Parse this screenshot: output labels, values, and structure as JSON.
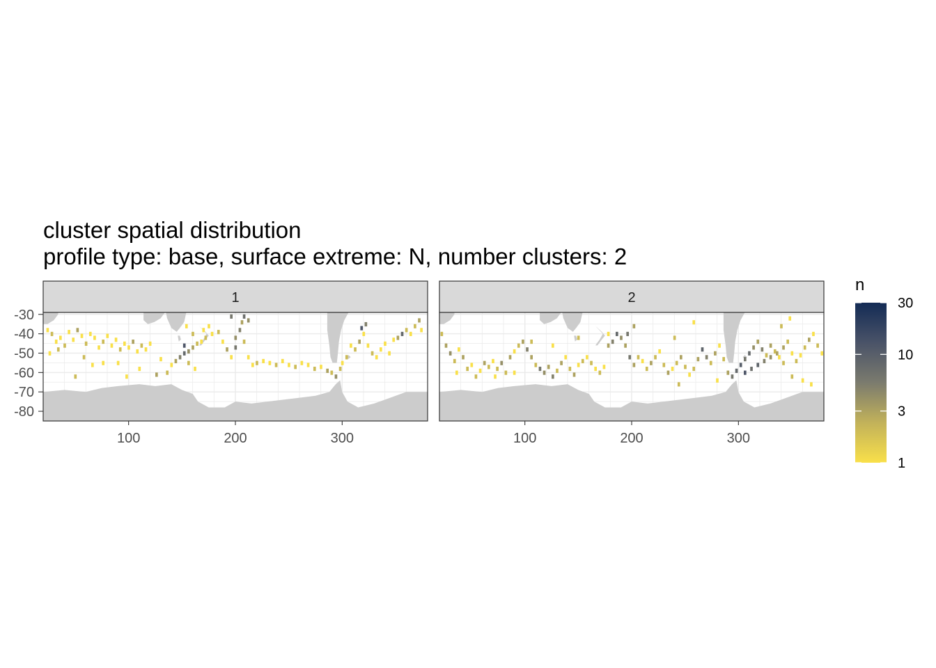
{
  "title": "cluster spatial distribution",
  "subtitle": "profile type: base, surface extreme: N, number clusters: 2",
  "chart_data": {
    "type": "heatmap",
    "title": "cluster spatial distribution",
    "subtitle": "profile type: base, surface extreme: N, number clusters: 2",
    "xlabel": "",
    "ylabel": "",
    "xlim": [
      20,
      380
    ],
    "ylim": [
      -85,
      -29
    ],
    "x_ticks": [
      100,
      200,
      300
    ],
    "x_tick_labels": [
      "100",
      "200",
      "300"
    ],
    "y_ticks": [
      -30,
      -40,
      -50,
      -60,
      -70,
      -80
    ],
    "y_tick_labels": [
      "-30",
      "-40",
      "-50",
      "-60",
      "-70",
      "-80"
    ],
    "grid": true,
    "land_color": "#cccccc",
    "facets": [
      {
        "label": "1",
        "cells": [
          [
            24,
            -38,
            1
          ],
          [
            28,
            -40,
            2
          ],
          [
            32,
            -44,
            1
          ],
          [
            36,
            -42,
            1
          ],
          [
            40,
            -46,
            2
          ],
          [
            44,
            -39,
            1
          ],
          [
            48,
            -43,
            1
          ],
          [
            52,
            -38,
            3
          ],
          [
            56,
            -41,
            1
          ],
          [
            60,
            -45,
            2
          ],
          [
            64,
            -40,
            1
          ],
          [
            68,
            -42,
            1
          ],
          [
            72,
            -47,
            1
          ],
          [
            76,
            -44,
            2
          ],
          [
            80,
            -41,
            1
          ],
          [
            84,
            -46,
            1
          ],
          [
            88,
            -43,
            1
          ],
          [
            92,
            -48,
            2
          ],
          [
            96,
            -45,
            1
          ],
          [
            100,
            -47,
            1
          ],
          [
            104,
            -44,
            3
          ],
          [
            108,
            -49,
            1
          ],
          [
            112,
            -46,
            2
          ],
          [
            116,
            -48,
            1
          ],
          [
            120,
            -45,
            1
          ],
          [
            26,
            -50,
            1
          ],
          [
            34,
            -48,
            2
          ],
          [
            50,
            -62,
            2
          ],
          [
            66,
            -56,
            1
          ],
          [
            90,
            -55,
            1
          ],
          [
            110,
            -58,
            1
          ],
          [
            136,
            -60,
            2
          ],
          [
            140,
            -56,
            1
          ],
          [
            144,
            -54,
            3
          ],
          [
            148,
            -52,
            5
          ],
          [
            152,
            -50,
            8
          ],
          [
            156,
            -49,
            4
          ],
          [
            160,
            -47,
            3
          ],
          [
            164,
            -45,
            2
          ],
          [
            168,
            -44,
            1
          ],
          [
            152,
            -46,
            12
          ],
          [
            156,
            -55,
            2
          ],
          [
            162,
            -58,
            1
          ],
          [
            170,
            -38,
            1
          ],
          [
            172,
            -42,
            2
          ],
          [
            175,
            -36,
            1
          ],
          [
            178,
            -40,
            1
          ],
          [
            184,
            -39,
            2
          ],
          [
            188,
            -44,
            1
          ],
          [
            192,
            -48,
            3
          ],
          [
            196,
            -52,
            1
          ],
          [
            200,
            -47,
            6
          ],
          [
            200,
            -42,
            4
          ],
          [
            204,
            -38,
            5
          ],
          [
            206,
            -34,
            3
          ],
          [
            208,
            -44,
            2
          ],
          [
            212,
            -52,
            1
          ],
          [
            216,
            -56,
            1
          ],
          [
            220,
            -55,
            2
          ],
          [
            226,
            -54,
            1
          ],
          [
            232,
            -55,
            1
          ],
          [
            238,
            -56,
            2
          ],
          [
            244,
            -54,
            1
          ],
          [
            250,
            -56,
            1
          ],
          [
            256,
            -57,
            2
          ],
          [
            262,
            -55,
            1
          ],
          [
            268,
            -56,
            1
          ],
          [
            274,
            -58,
            2
          ],
          [
            280,
            -57,
            1
          ],
          [
            286,
            -59,
            3
          ],
          [
            290,
            -60,
            2
          ],
          [
            294,
            -62,
            4
          ],
          [
            298,
            -58,
            2
          ],
          [
            300,
            -55,
            1
          ],
          [
            304,
            -52,
            2
          ],
          [
            308,
            -46,
            1
          ],
          [
            312,
            -48,
            2
          ],
          [
            316,
            -44,
            3
          ],
          [
            320,
            -40,
            1
          ],
          [
            324,
            -46,
            1
          ],
          [
            328,
            -50,
            2
          ],
          [
            332,
            -52,
            1
          ],
          [
            336,
            -48,
            1
          ],
          [
            340,
            -45,
            1
          ],
          [
            344,
            -50,
            1
          ],
          [
            348,
            -43,
            1
          ],
          [
            352,
            -42,
            3
          ],
          [
            356,
            -40,
            8
          ],
          [
            360,
            -38,
            2
          ],
          [
            364,
            -40,
            1
          ],
          [
            368,
            -36,
            2
          ],
          [
            372,
            -33,
            3
          ],
          [
            374,
            -38,
            1
          ],
          [
            318,
            -37,
            12
          ],
          [
            322,
            -35,
            5
          ],
          [
            196,
            -31,
            6
          ],
          [
            208,
            -31,
            7
          ],
          [
            212,
            -33,
            4
          ],
          [
            154,
            -36,
            1
          ],
          [
            160,
            -40,
            2
          ],
          [
            130,
            -53,
            1
          ],
          [
            126,
            -61,
            3
          ],
          [
            98,
            -62,
            1
          ],
          [
            76,
            -55,
            1
          ],
          [
            58,
            -52,
            2
          ]
        ]
      },
      {
        "label": "2",
        "cells": [
          [
            22,
            -40,
            2
          ],
          [
            26,
            -46,
            3
          ],
          [
            30,
            -50,
            4
          ],
          [
            34,
            -54,
            2
          ],
          [
            38,
            -48,
            1
          ],
          [
            42,
            -52,
            3
          ],
          [
            46,
            -58,
            2
          ],
          [
            50,
            -56,
            1
          ],
          [
            54,
            -62,
            2
          ],
          [
            58,
            -59,
            1
          ],
          [
            62,
            -55,
            3
          ],
          [
            66,
            -57,
            2
          ],
          [
            70,
            -54,
            1
          ],
          [
            74,
            -58,
            2
          ],
          [
            78,
            -55,
            4
          ],
          [
            82,
            -60,
            2
          ],
          [
            86,
            -52,
            3
          ],
          [
            90,
            -49,
            1
          ],
          [
            94,
            -46,
            2
          ],
          [
            98,
            -44,
            3
          ],
          [
            102,
            -48,
            5
          ],
          [
            106,
            -52,
            3
          ],
          [
            110,
            -56,
            2
          ],
          [
            114,
            -58,
            6
          ],
          [
            118,
            -60,
            4
          ],
          [
            122,
            -57,
            3
          ],
          [
            126,
            -62,
            5
          ],
          [
            130,
            -59,
            2
          ],
          [
            134,
            -55,
            3
          ],
          [
            138,
            -52,
            1
          ],
          [
            142,
            -58,
            2
          ],
          [
            146,
            -61,
            3
          ],
          [
            150,
            -56,
            1
          ],
          [
            154,
            -54,
            2
          ],
          [
            158,
            -52,
            1
          ],
          [
            162,
            -55,
            2
          ],
          [
            166,
            -58,
            1
          ],
          [
            170,
            -60,
            2
          ],
          [
            174,
            -57,
            1
          ],
          [
            178,
            -46,
            3
          ],
          [
            182,
            -44,
            5
          ],
          [
            186,
            -40,
            8
          ],
          [
            190,
            -42,
            4
          ],
          [
            194,
            -46,
            3
          ],
          [
            198,
            -52,
            6
          ],
          [
            202,
            -56,
            3
          ],
          [
            206,
            -52,
            2
          ],
          [
            210,
            -54,
            1
          ],
          [
            214,
            -58,
            2
          ],
          [
            218,
            -55,
            3
          ],
          [
            222,
            -52,
            2
          ],
          [
            226,
            -49,
            1
          ],
          [
            230,
            -56,
            2
          ],
          [
            234,
            -60,
            3
          ],
          [
            238,
            -58,
            1
          ],
          [
            242,
            -55,
            2
          ],
          [
            246,
            -52,
            3
          ],
          [
            250,
            -57,
            2
          ],
          [
            254,
            -61,
            1
          ],
          [
            258,
            -58,
            2
          ],
          [
            262,
            -53,
            3
          ],
          [
            266,
            -48,
            9
          ],
          [
            270,
            -52,
            5
          ],
          [
            274,
            -55,
            2
          ],
          [
            278,
            -50,
            3
          ],
          [
            282,
            -46,
            1
          ],
          [
            286,
            -53,
            2
          ],
          [
            290,
            -60,
            3
          ],
          [
            294,
            -62,
            6
          ],
          [
            298,
            -59,
            8
          ],
          [
            302,
            -56,
            10
          ],
          [
            306,
            -53,
            6
          ],
          [
            310,
            -50,
            8
          ],
          [
            314,
            -47,
            4
          ],
          [
            318,
            -44,
            3
          ],
          [
            322,
            -48,
            5
          ],
          [
            326,
            -51,
            2
          ],
          [
            330,
            -46,
            3
          ],
          [
            334,
            -49,
            2
          ],
          [
            338,
            -52,
            1
          ],
          [
            342,
            -47,
            3
          ],
          [
            346,
            -44,
            2
          ],
          [
            350,
            -50,
            1
          ],
          [
            354,
            -54,
            2
          ],
          [
            358,
            -51,
            1
          ],
          [
            362,
            -47,
            2
          ],
          [
            366,
            -43,
            3
          ],
          [
            370,
            -40,
            1
          ],
          [
            374,
            -46,
            2
          ],
          [
            378,
            -50,
            1
          ],
          [
            306,
            -60,
            12
          ],
          [
            312,
            -58,
            7
          ],
          [
            318,
            -56,
            9
          ],
          [
            324,
            -54,
            5
          ],
          [
            330,
            -52,
            4
          ],
          [
            336,
            -50,
            3
          ],
          [
            342,
            -55,
            2
          ],
          [
            350,
            -62,
            2
          ],
          [
            360,
            -64,
            1
          ],
          [
            368,
            -66,
            1
          ],
          [
            348,
            -32,
            1
          ],
          [
            340,
            -36,
            2
          ],
          [
            258,
            -34,
            1
          ],
          [
            240,
            -42,
            2
          ],
          [
            202,
            -36,
            3
          ],
          [
            196,
            -40,
            6
          ],
          [
            178,
            -40,
            1
          ],
          [
            150,
            -42,
            2
          ],
          [
            126,
            -46,
            1
          ],
          [
            106,
            -44,
            2
          ],
          [
            90,
            -60,
            1
          ],
          [
            72,
            -62,
            1
          ],
          [
            36,
            -60,
            1
          ],
          [
            280,
            -64,
            1
          ],
          [
            244,
            -66,
            2
          ]
        ]
      }
    ],
    "legend": {
      "title": "n",
      "position": "right",
      "scale": "log",
      "range": [
        1,
        30
      ],
      "breaks": [
        1,
        3,
        10,
        30
      ],
      "break_labels": [
        "1",
        "3",
        "10",
        "30"
      ],
      "colors": [
        "#f9e04a",
        "#c2b25a",
        "#7b7b6e",
        "#4a5368",
        "#132b55"
      ]
    }
  }
}
